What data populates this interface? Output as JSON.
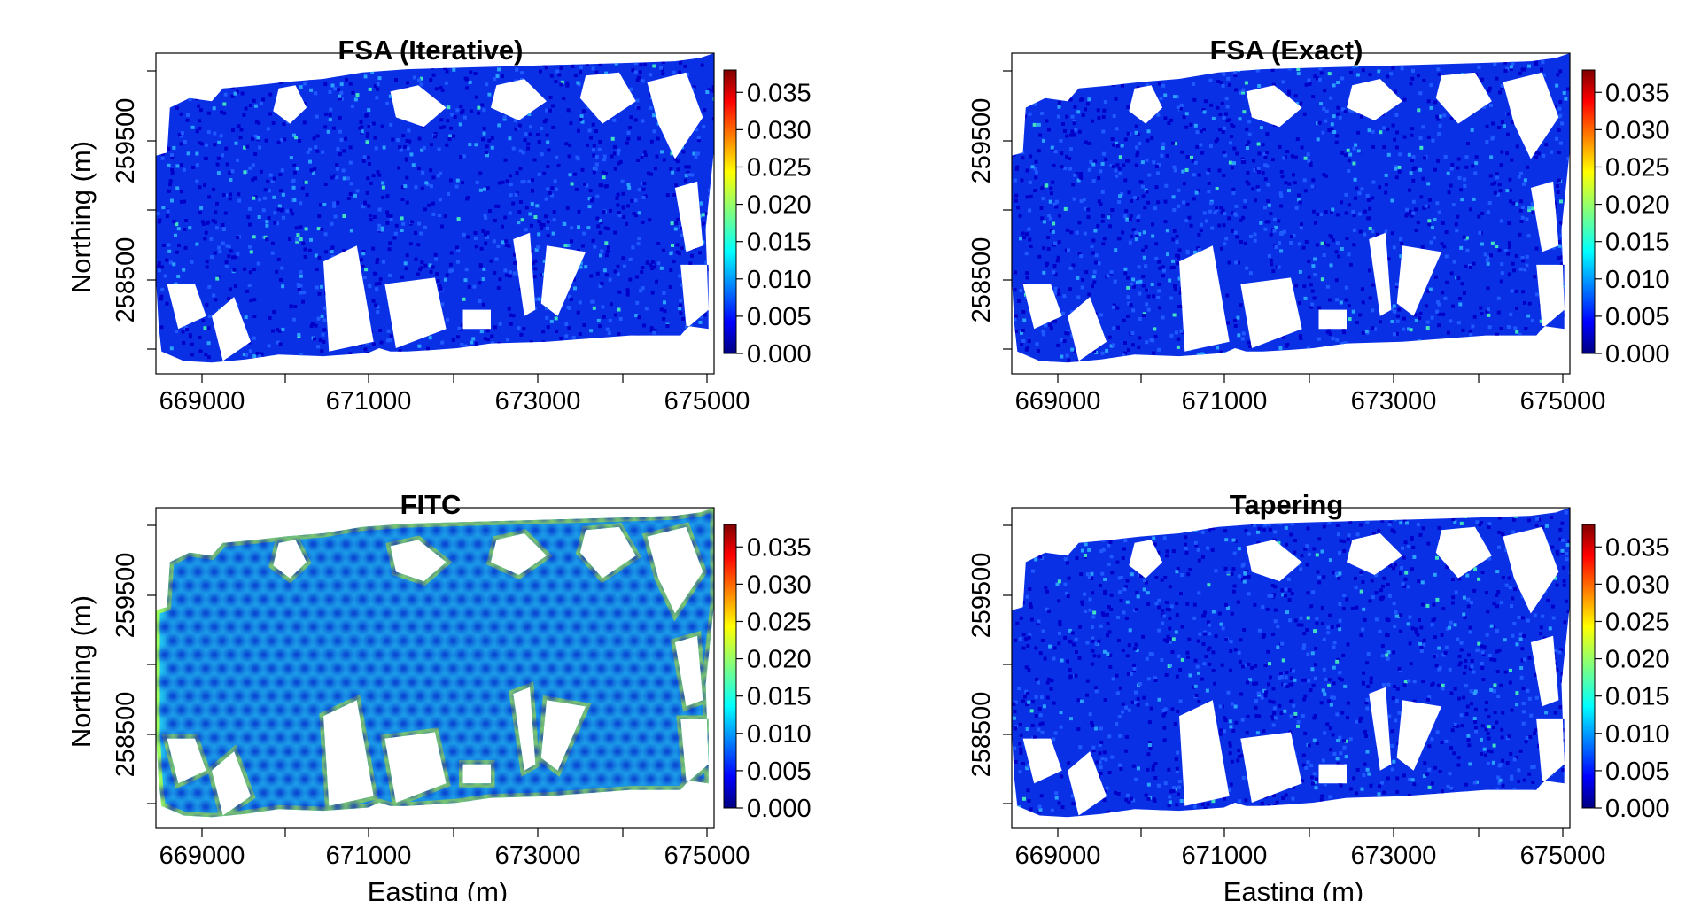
{
  "figure": {
    "xlabel": "Easting (m)",
    "ylabel": "Northing (m)"
  },
  "chart_data": [
    {
      "type": "heatmap",
      "title": "FSA (Iterative)",
      "pattern": "fine",
      "xticks": [
        "669000",
        "671000",
        "673000",
        "675000"
      ],
      "yticks": [
        "258500",
        "259500"
      ],
      "xlabel": "",
      "ylabel": "Northing (m)",
      "colorbar": {
        "range": [
          0,
          0.038
        ],
        "ticks": [
          "0.000",
          "0.005",
          "0.010",
          "0.015",
          "0.020",
          "0.025",
          "0.030",
          "0.035"
        ]
      }
    },
    {
      "type": "heatmap",
      "title": "FSA (Exact)",
      "pattern": "fine",
      "xticks": [
        "669000",
        "671000",
        "673000",
        "675000"
      ],
      "yticks": [
        "258500",
        "259500"
      ],
      "xlabel": "",
      "ylabel": "",
      "colorbar": {
        "range": [
          0,
          0.038
        ],
        "ticks": [
          "0.000",
          "0.005",
          "0.010",
          "0.015",
          "0.020",
          "0.025",
          "0.030",
          "0.035"
        ]
      }
    },
    {
      "type": "heatmap",
      "title": "FITC",
      "pattern": "knots",
      "xticks": [
        "669000",
        "671000",
        "673000",
        "675000"
      ],
      "yticks": [
        "258500",
        "259500"
      ],
      "xlabel": "Easting (m)",
      "ylabel": "Northing (m)",
      "colorbar": {
        "range": [
          0,
          0.038
        ],
        "ticks": [
          "0.000",
          "0.005",
          "0.010",
          "0.015",
          "0.020",
          "0.025",
          "0.030",
          "0.035"
        ]
      }
    },
    {
      "type": "heatmap",
      "title": "Tapering",
      "pattern": "fine",
      "xticks": [
        "669000",
        "671000",
        "673000",
        "675000"
      ],
      "yticks": [
        "258500",
        "259500"
      ],
      "xlabel": "Easting (m)",
      "ylabel": "",
      "colorbar": {
        "range": [
          0,
          0.038
        ],
        "ticks": [
          "0.000",
          "0.005",
          "0.010",
          "0.015",
          "0.020",
          "0.025",
          "0.030",
          "0.035"
        ]
      }
    }
  ]
}
